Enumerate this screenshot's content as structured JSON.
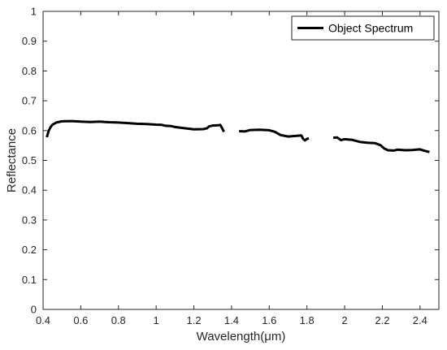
{
  "chart_data": {
    "type": "line",
    "xlabel": "Wavelength(μm)",
    "ylabel": "Reflectance",
    "xlim": [
      0.4,
      2.5
    ],
    "ylim": [
      0,
      1
    ],
    "xticks": [
      0.4,
      0.6,
      0.8,
      1,
      1.2,
      1.4,
      1.6,
      1.8,
      2,
      2.2,
      2.4
    ],
    "xtick_labels": [
      "0.4",
      "0.6",
      "0.8",
      "1",
      "1.2",
      "1.4",
      "1.6",
      "1.8",
      "2",
      "2.2",
      "2.4"
    ],
    "yticks": [
      0,
      0.1,
      0.2,
      0.3,
      0.4,
      0.5,
      0.6,
      0.7,
      0.8,
      0.9,
      1
    ],
    "ytick_labels": [
      "0",
      "0.1",
      "0.2",
      "0.3",
      "0.4",
      "0.5",
      "0.6",
      "0.7",
      "0.8",
      "0.9",
      "1"
    ],
    "grid": false,
    "legend": {
      "position": "top-right",
      "entries": [
        "Object Spectrum"
      ]
    },
    "series": [
      {
        "name": "Object Spectrum",
        "color": "#000000",
        "segments": [
          [
            [
              0.42,
              0.578
            ],
            [
              0.43,
              0.6
            ],
            [
              0.44,
              0.612
            ],
            [
              0.45,
              0.62
            ],
            [
              0.47,
              0.627
            ],
            [
              0.5,
              0.631
            ],
            [
              0.55,
              0.632
            ],
            [
              0.6,
              0.63
            ],
            [
              0.65,
              0.629
            ],
            [
              0.7,
              0.63
            ],
            [
              0.75,
              0.628
            ],
            [
              0.8,
              0.627
            ],
            [
              0.85,
              0.625
            ],
            [
              0.9,
              0.623
            ],
            [
              0.95,
              0.622
            ],
            [
              1.0,
              0.62
            ],
            [
              1.03,
              0.619
            ],
            [
              1.05,
              0.616
            ],
            [
              1.08,
              0.615
            ],
            [
              1.1,
              0.612
            ],
            [
              1.15,
              0.608
            ],
            [
              1.2,
              0.604
            ],
            [
              1.25,
              0.605
            ],
            [
              1.27,
              0.608
            ],
            [
              1.28,
              0.614
            ],
            [
              1.3,
              0.617
            ],
            [
              1.33,
              0.618
            ],
            [
              1.34,
              0.619
            ],
            [
              1.35,
              0.608
            ],
            [
              1.36,
              0.596
            ]
          ],
          [
            [
              1.44,
              0.598
            ],
            [
              1.47,
              0.597
            ],
            [
              1.5,
              0.602
            ],
            [
              1.55,
              0.603
            ],
            [
              1.6,
              0.601
            ],
            [
              1.63,
              0.596
            ],
            [
              1.66,
              0.585
            ],
            [
              1.7,
              0.58
            ],
            [
              1.74,
              0.582
            ],
            [
              1.77,
              0.584
            ],
            [
              1.78,
              0.572
            ],
            [
              1.79,
              0.567
            ],
            [
              1.8,
              0.572
            ],
            [
              1.81,
              0.574
            ]
          ],
          [
            [
              1.94,
              0.576
            ],
            [
              1.96,
              0.577
            ],
            [
              1.98,
              0.568
            ],
            [
              2.0,
              0.571
            ],
            [
              2.04,
              0.569
            ],
            [
              2.08,
              0.562
            ],
            [
              2.12,
              0.559
            ],
            [
              2.16,
              0.558
            ],
            [
              2.19,
              0.551
            ],
            [
              2.21,
              0.54
            ],
            [
              2.23,
              0.534
            ],
            [
              2.26,
              0.533
            ],
            [
              2.28,
              0.536
            ],
            [
              2.32,
              0.534
            ],
            [
              2.36,
              0.535
            ],
            [
              2.4,
              0.537
            ],
            [
              2.42,
              0.533
            ],
            [
              2.45,
              0.528
            ]
          ]
        ]
      }
    ]
  }
}
